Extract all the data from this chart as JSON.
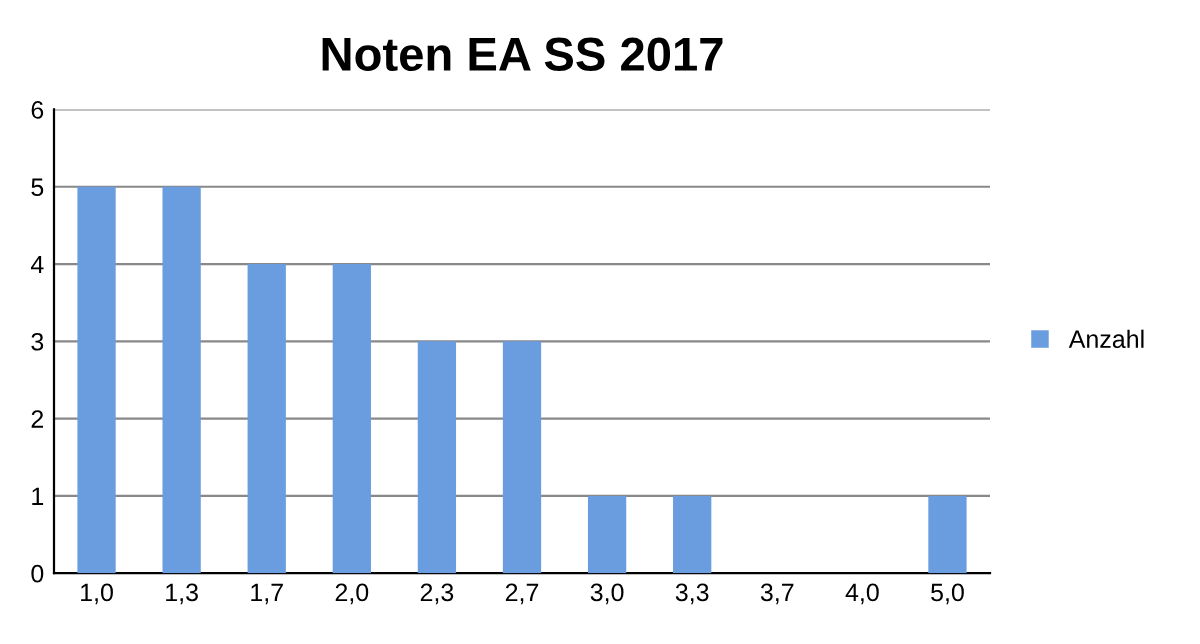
{
  "chart_data": {
    "type": "bar",
    "title": "Noten EA SS 2017",
    "categories": [
      "1,0",
      "1,3",
      "1,7",
      "2,0",
      "2,3",
      "2,7",
      "3,0",
      "3,3",
      "3,7",
      "4,0",
      "5,0"
    ],
    "series": [
      {
        "name": "Anzahl",
        "color": "#6a9de0",
        "values": [
          5,
          5,
          4,
          4,
          3,
          3,
          1,
          1,
          0,
          0,
          1
        ]
      }
    ],
    "ylim": [
      0,
      6
    ],
    "yticks": [
      0,
      1,
      2,
      3,
      4,
      5,
      6
    ],
    "grid": "y",
    "legend": "right"
  }
}
